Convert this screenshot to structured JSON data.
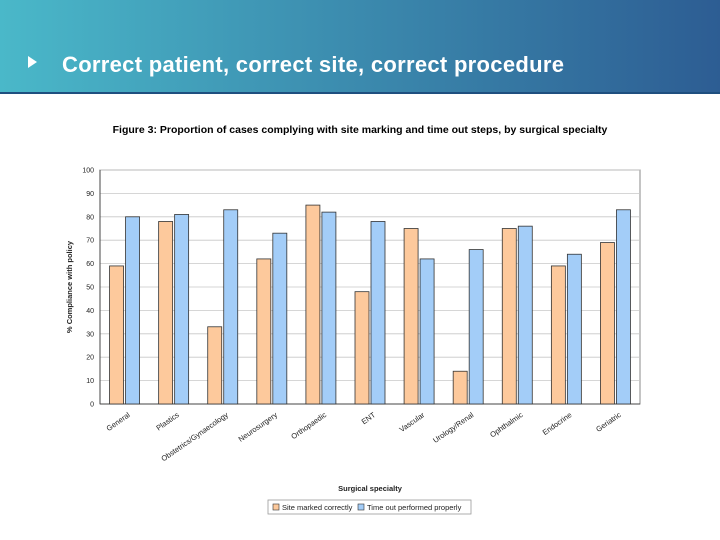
{
  "slide": {
    "title": "Correct patient, correct site, correct procedure",
    "bullet_icon": "triangle-bullet-icon"
  },
  "figure": {
    "caption": "Figure 3: Proportion of cases complying with site marking and time out steps, by surgical specialty"
  },
  "colors": {
    "series_1": "#fdc99c",
    "series_2": "#a3cdf8",
    "bar_stroke": "#333333",
    "grid": "#c8c8c8"
  },
  "chart_data": {
    "type": "bar",
    "title": "",
    "xlabel": "Surgical specialty",
    "ylabel": "% Compliance with policy",
    "ylim": [
      0,
      100
    ],
    "yticks": [
      0,
      10,
      20,
      30,
      40,
      50,
      60,
      70,
      80,
      90,
      100
    ],
    "grid": true,
    "legend_position": "bottom-center",
    "categories": [
      "General",
      "Plastics",
      "Obstetrics/Gynaecology",
      "Neurosurgery",
      "Orthopaedic",
      "ENT",
      "Vascular",
      "Urology/Renal",
      "Ophthalmic",
      "Endocrine",
      "Geriatric"
    ],
    "series": [
      {
        "name": "Site marked correctly",
        "values": [
          59,
          78,
          33,
          62,
          85,
          48,
          75,
          14,
          75,
          59,
          69
        ]
      },
      {
        "name": "Time out performed properly",
        "values": [
          80,
          81,
          83,
          73,
          82,
          78,
          62,
          66,
          76,
          64,
          83
        ]
      }
    ]
  }
}
